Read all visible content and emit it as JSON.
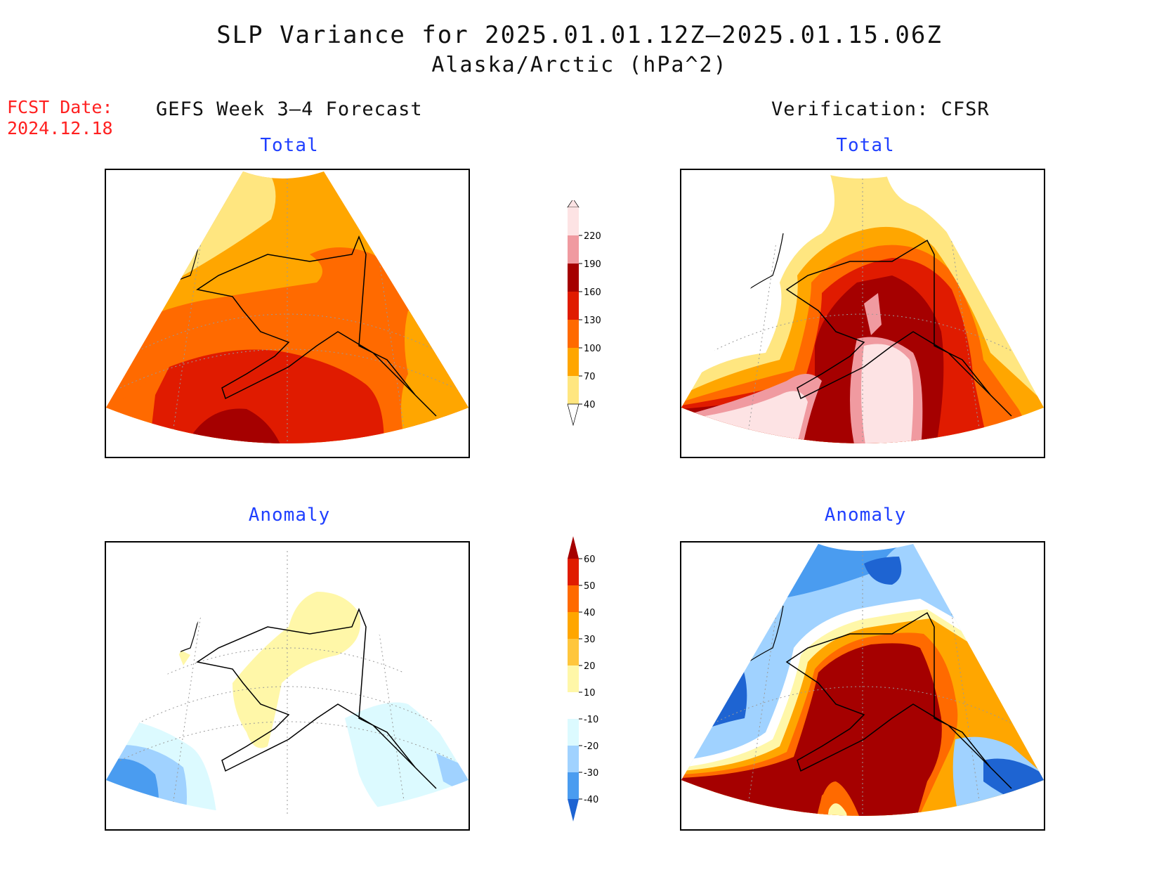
{
  "title": "SLP Variance for 2025.01.01.12Z–2025.01.15.06Z",
  "subtitle": "Alaska/Arctic (hPa^2)",
  "fcst_label": "FCST Date:",
  "fcst_date": "2024.12.18",
  "left_header": "GEFS Week 3–4 Forecast",
  "right_header": "Verification: CFSR",
  "panels": {
    "forecast_total": {
      "label": "Total"
    },
    "verification_total": {
      "label": "Total"
    },
    "forecast_anomaly": {
      "label": "Anomaly"
    },
    "verification_anomaly": {
      "label": "Anomaly"
    }
  },
  "total_colorbar": {
    "levels": [
      "40",
      "70",
      "100",
      "130",
      "160",
      "190",
      "220"
    ],
    "colors": [
      "#ffe680",
      "#ffa600",
      "#ff6a00",
      "#e01b00",
      "#a50000",
      "#f09aa0",
      "#fde3e4"
    ]
  },
  "anomaly_colorbar": {
    "levels": [
      "60",
      "50",
      "40",
      "30",
      "20",
      "10",
      "-10",
      "-20",
      "-30",
      "-40"
    ],
    "colors": [
      "#a50000",
      "#e01b00",
      "#ff6a00",
      "#ffa600",
      "#ffc63c",
      "#fff7a8",
      "#ffffff",
      "#dcfaff",
      "#a0d2ff",
      "#4a9cf0",
      "#1e64d2"
    ]
  }
}
